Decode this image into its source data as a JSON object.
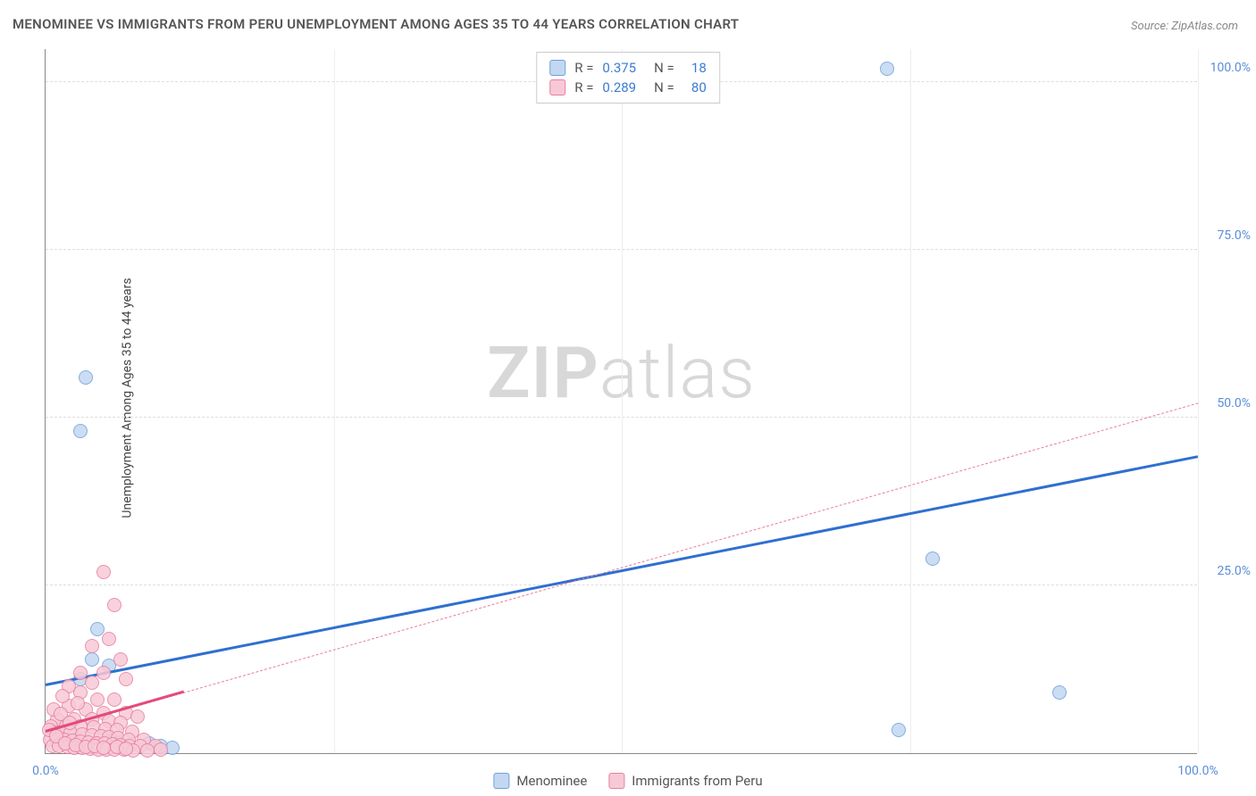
{
  "title": "MENOMINEE VS IMMIGRANTS FROM PERU UNEMPLOYMENT AMONG AGES 35 TO 44 YEARS CORRELATION CHART",
  "source": "Source: ZipAtlas.com",
  "ylabel": "Unemployment Among Ages 35 to 44 years",
  "watermark_bold": "ZIP",
  "watermark_light": "atlas",
  "chart": {
    "type": "scatter-with-regression",
    "background_color": "#ffffff",
    "grid_color": "#dddddd",
    "axis_color": "#888888",
    "xlim": [
      0,
      100
    ],
    "ylim": [
      0,
      105
    ],
    "xticks": [
      {
        "v": 0,
        "label": "0.0%"
      },
      {
        "v": 100,
        "label": "100.0%"
      }
    ],
    "xgrid_minor": [
      25,
      50,
      75,
      100
    ],
    "yticks": [
      {
        "v": 25,
        "label": "25.0%"
      },
      {
        "v": 50,
        "label": "50.0%"
      },
      {
        "v": 75,
        "label": "75.0%"
      },
      {
        "v": 100,
        "label": "100.0%"
      }
    ],
    "ytick_color": "#5b8dd6",
    "xtick_color": "#5b8dd6",
    "marker_radius": 8,
    "series": [
      {
        "name": "Menominee",
        "marker_fill": "#c2d8f2",
        "marker_stroke": "#6fa0d9",
        "R": "0.375",
        "N": "18",
        "trend": {
          "x0": 0,
          "y0": 10,
          "x1": 100,
          "y1": 44,
          "color": "#2f6fd0",
          "width": 3,
          "dash": false
        },
        "points": [
          {
            "x": 3.5,
            "y": 56
          },
          {
            "x": 3.0,
            "y": 48
          },
          {
            "x": 73,
            "y": 102
          },
          {
            "x": 77,
            "y": 29
          },
          {
            "x": 74,
            "y": 3.5
          },
          {
            "x": 88,
            "y": 9
          },
          {
            "x": 4.5,
            "y": 18.5
          },
          {
            "x": 4,
            "y": 14
          },
          {
            "x": 3,
            "y": 11
          },
          {
            "x": 1.5,
            "y": 4
          },
          {
            "x": 2.5,
            "y": 2
          },
          {
            "x": 4,
            "y": 1
          },
          {
            "x": 6,
            "y": 2
          },
          {
            "x": 7,
            "y": 1
          },
          {
            "x": 9,
            "y": 1.5
          },
          {
            "x": 10,
            "y": 1
          },
          {
            "x": 11,
            "y": 0.8
          },
          {
            "x": 5.5,
            "y": 13
          }
        ]
      },
      {
        "name": "Immigrants from Peru",
        "marker_fill": "#f7c9d6",
        "marker_stroke": "#e87ea0",
        "R": "0.289",
        "N": "80",
        "trend": {
          "x0": 0,
          "y0": 3,
          "x1": 100,
          "y1": 52,
          "color": "#e87ea0",
          "width": 1,
          "dash": true
        },
        "solid_segment": {
          "x0": 0,
          "y0": 3,
          "x1": 12,
          "y1": 8.9,
          "color": "#e34b7a",
          "width": 3
        },
        "points": [
          {
            "x": 5,
            "y": 27
          },
          {
            "x": 6,
            "y": 22
          },
          {
            "x": 5.5,
            "y": 17
          },
          {
            "x": 4,
            "y": 16
          },
          {
            "x": 6.5,
            "y": 14
          },
          {
            "x": 5,
            "y": 12
          },
          {
            "x": 7,
            "y": 11
          },
          {
            "x": 3,
            "y": 9
          },
          {
            "x": 4.5,
            "y": 8
          },
          {
            "x": 6,
            "y": 8
          },
          {
            "x": 2,
            "y": 7
          },
          {
            "x": 3.5,
            "y": 6.5
          },
          {
            "x": 5,
            "y": 6
          },
          {
            "x": 7,
            "y": 6
          },
          {
            "x": 8,
            "y": 5.5
          },
          {
            "x": 1,
            "y": 5
          },
          {
            "x": 2.5,
            "y": 5
          },
          {
            "x": 4,
            "y": 5
          },
          {
            "x": 5.5,
            "y": 4.8
          },
          {
            "x": 6.5,
            "y": 4.5
          },
          {
            "x": 0.5,
            "y": 4
          },
          {
            "x": 1.8,
            "y": 4
          },
          {
            "x": 3,
            "y": 4
          },
          {
            "x": 4.2,
            "y": 3.8
          },
          {
            "x": 5.2,
            "y": 3.6
          },
          {
            "x": 6.2,
            "y": 3.4
          },
          {
            "x": 7.5,
            "y": 3.2
          },
          {
            "x": 0.8,
            "y": 3
          },
          {
            "x": 1.5,
            "y": 3
          },
          {
            "x": 2.2,
            "y": 3
          },
          {
            "x": 3.2,
            "y": 2.8
          },
          {
            "x": 4,
            "y": 2.6
          },
          {
            "x": 4.8,
            "y": 2.5
          },
          {
            "x": 5.5,
            "y": 2.4
          },
          {
            "x": 6.3,
            "y": 2.2
          },
          {
            "x": 7.2,
            "y": 2
          },
          {
            "x": 8.5,
            "y": 2
          },
          {
            "x": 0.4,
            "y": 2
          },
          {
            "x": 1,
            "y": 2
          },
          {
            "x": 1.6,
            "y": 2
          },
          {
            "x": 2.3,
            "y": 1.8
          },
          {
            "x": 3,
            "y": 1.7
          },
          {
            "x": 3.7,
            "y": 1.6
          },
          {
            "x": 4.4,
            "y": 1.5
          },
          {
            "x": 5.1,
            "y": 1.4
          },
          {
            "x": 5.8,
            "y": 1.3
          },
          {
            "x": 6.5,
            "y": 1.2
          },
          {
            "x": 7.3,
            "y": 1.1
          },
          {
            "x": 8.2,
            "y": 1
          },
          {
            "x": 9.5,
            "y": 1
          },
          {
            "x": 0.6,
            "y": 1
          },
          {
            "x": 1.2,
            "y": 1
          },
          {
            "x": 1.9,
            "y": 0.9
          },
          {
            "x": 2.5,
            "y": 0.8
          },
          {
            "x": 3.2,
            "y": 0.8
          },
          {
            "x": 3.9,
            "y": 0.7
          },
          {
            "x": 4.6,
            "y": 0.6
          },
          {
            "x": 5.3,
            "y": 0.6
          },
          {
            "x": 6,
            "y": 0.5
          },
          {
            "x": 6.8,
            "y": 0.5
          },
          {
            "x": 7.6,
            "y": 0.4
          },
          {
            "x": 8.8,
            "y": 0.4
          },
          {
            "x": 10,
            "y": 0.5
          },
          {
            "x": 2,
            "y": 10
          },
          {
            "x": 3,
            "y": 12
          },
          {
            "x": 4,
            "y": 10.5
          },
          {
            "x": 1.5,
            "y": 8.5
          },
          {
            "x": 2.8,
            "y": 7.5
          },
          {
            "x": 0.7,
            "y": 6.5
          },
          {
            "x": 1.3,
            "y": 5.8
          },
          {
            "x": 2.1,
            "y": 4.5
          },
          {
            "x": 0.3,
            "y": 3.5
          },
          {
            "x": 0.9,
            "y": 2.5
          },
          {
            "x": 1.7,
            "y": 1.5
          },
          {
            "x": 2.6,
            "y": 1.2
          },
          {
            "x": 3.5,
            "y": 0.9
          },
          {
            "x": 4.3,
            "y": 1.1
          },
          {
            "x": 5,
            "y": 0.8
          },
          {
            "x": 6.2,
            "y": 0.9
          },
          {
            "x": 7,
            "y": 0.7
          }
        ]
      }
    ]
  },
  "legend_top_labels": {
    "R": "R =",
    "N": "N ="
  },
  "legend_bottom": [
    "Menominee",
    "Immigrants from Peru"
  ]
}
